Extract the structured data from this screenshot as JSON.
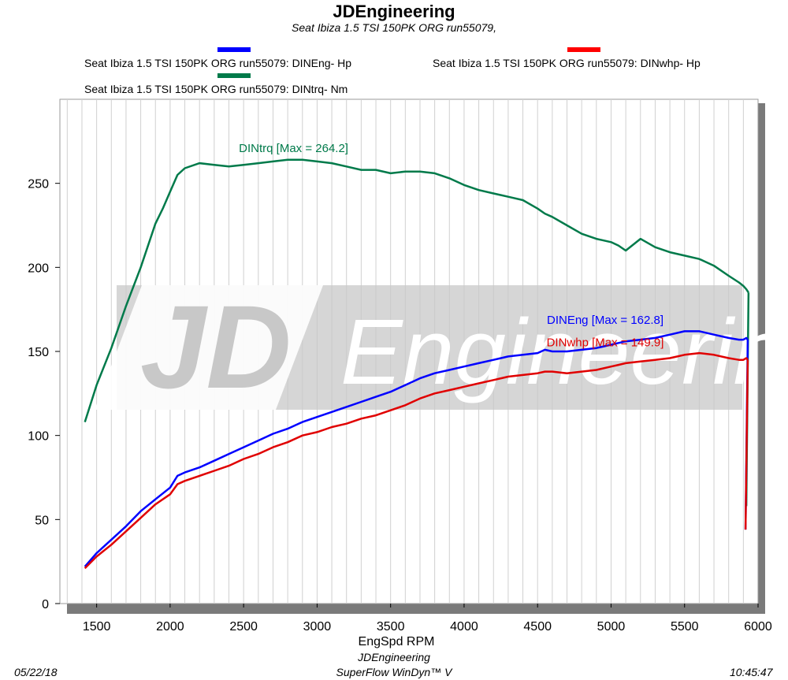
{
  "header": {
    "title": "JDEngineering",
    "subtitle": "Seat Ibiza 1.5 TSI  150PK  ORG    run55079,"
  },
  "legend": [
    {
      "label": "Seat Ibiza 1.5 TSI  150PK  ORG    run55079: DINEng- Hp",
      "color": "#0000ff"
    },
    {
      "label": "Seat Ibiza 1.5 TSI  150PK  ORG    run55079: DINwhp-  Hp",
      "color": "#ff0000"
    },
    {
      "label": "Seat Ibiza 1.5 TSI  150PK  ORG    run55079: DINtrq- Nm",
      "color": "#007a4a"
    }
  ],
  "footer": {
    "date": "05/22/18",
    "company": "JDEngineering",
    "software": "SuperFlow  WinDyn™  V",
    "time": "10:45:47"
  },
  "watermark": {
    "logo": "JD",
    "text": "Engineering"
  },
  "colors": {
    "hp": "#0000ff",
    "whp": "#e00000",
    "torque": "#007a4a",
    "frame_shadow": "#7a7a7a",
    "grid": "#d0d0d0"
  },
  "chart_data": {
    "type": "line",
    "title": "JDEngineering",
    "xlabel": "EngSpd  RPM",
    "ylabel": "",
    "xlim": [
      1250,
      6000
    ],
    "ylim": [
      0,
      300
    ],
    "xticks": [
      "1500",
      "2000",
      "2500",
      "3000",
      "3500",
      "4000",
      "4500",
      "5000",
      "5500",
      "6000"
    ],
    "yticks": [
      "0",
      "50",
      "100",
      "150",
      "200",
      "250"
    ],
    "grid": true,
    "annotations": [
      {
        "series": "torque",
        "text": "DINtrq [Max = 264.2]",
        "x": 2840,
        "y": 268.5
      },
      {
        "series": "hp",
        "text": "DINEng [Max = 162.8]",
        "x": 4960,
        "y": 166.5
      },
      {
        "series": "whp",
        "text": "DINwhp [Max = 149.9]",
        "x": 4960,
        "y": 153
      }
    ],
    "series": [
      {
        "key": "torque",
        "name": "DINtrq- Nm",
        "x": [
          1420,
          1500,
          1600,
          1700,
          1800,
          1900,
          1950,
          2000,
          2050,
          2100,
          2200,
          2300,
          2400,
          2500,
          2600,
          2700,
          2800,
          2900,
          3000,
          3100,
          3200,
          3300,
          3400,
          3500,
          3600,
          3700,
          3800,
          3900,
          4000,
          4100,
          4200,
          4300,
          4400,
          4500,
          4550,
          4600,
          4700,
          4800,
          4900,
          5000,
          5050,
          5100,
          5200,
          5300,
          5400,
          5500,
          5600,
          5700,
          5800,
          5870,
          5900,
          5920,
          5935
        ],
        "y": [
          108,
          130,
          152,
          177,
          200,
          226,
          235,
          245,
          255,
          259,
          262,
          261,
          260,
          261,
          262,
          263,
          264,
          264,
          263,
          262,
          260,
          258,
          258,
          256,
          257,
          257,
          256,
          253,
          249,
          246,
          244,
          242,
          240,
          235,
          232,
          230,
          225,
          220,
          217,
          215,
          213,
          210,
          217,
          212,
          209,
          207,
          205,
          201,
          195,
          191,
          189,
          187,
          185
        ]
      },
      {
        "key": "hp",
        "name": "DINEng- Hp",
        "x": [
          1420,
          1500,
          1600,
          1700,
          1800,
          1900,
          2000,
          2050,
          2100,
          2200,
          2300,
          2400,
          2500,
          2600,
          2700,
          2800,
          2900,
          3000,
          3100,
          3200,
          3300,
          3400,
          3500,
          3600,
          3700,
          3800,
          3900,
          4000,
          4100,
          4200,
          4300,
          4400,
          4500,
          4550,
          4600,
          4700,
          4800,
          4900,
          5000,
          5050,
          5100,
          5200,
          5300,
          5400,
          5500,
          5600,
          5700,
          5800,
          5870,
          5900,
          5920,
          5930
        ],
        "y": [
          22,
          30,
          38,
          46,
          55,
          62,
          69,
          76,
          78,
          81,
          85,
          89,
          93,
          97,
          101,
          104,
          108,
          111,
          114,
          117,
          120,
          123,
          126,
          130,
          134,
          137,
          139,
          141,
          143,
          145,
          147,
          148,
          149,
          151,
          150,
          150,
          151,
          152,
          154,
          155,
          156,
          157,
          158,
          160,
          162,
          162,
          160,
          158,
          157,
          157,
          158,
          157
        ]
      },
      {
        "key": "whp",
        "name": "DINwhp-  Hp",
        "x": [
          1420,
          1500,
          1600,
          1700,
          1800,
          1900,
          2000,
          2050,
          2100,
          2200,
          2300,
          2400,
          2500,
          2600,
          2700,
          2800,
          2900,
          3000,
          3100,
          3200,
          3300,
          3400,
          3500,
          3600,
          3700,
          3800,
          3900,
          4000,
          4100,
          4200,
          4300,
          4400,
          4500,
          4550,
          4600,
          4700,
          4800,
          4900,
          5000,
          5050,
          5100,
          5200,
          5300,
          5400,
          5500,
          5600,
          5700,
          5800,
          5870,
          5900,
          5920,
          5930
        ],
        "y": [
          21,
          28,
          35,
          43,
          51,
          59,
          65,
          71,
          73,
          76,
          79,
          82,
          86,
          89,
          93,
          96,
          100,
          102,
          105,
          107,
          110,
          112,
          115,
          118,
          122,
          125,
          127,
          129,
          131,
          133,
          135,
          136,
          137,
          138,
          138,
          137,
          138,
          139,
          141,
          142,
          143,
          144,
          145,
          146,
          148,
          149,
          148,
          146,
          145,
          145,
          146,
          145
        ]
      }
    ]
  }
}
